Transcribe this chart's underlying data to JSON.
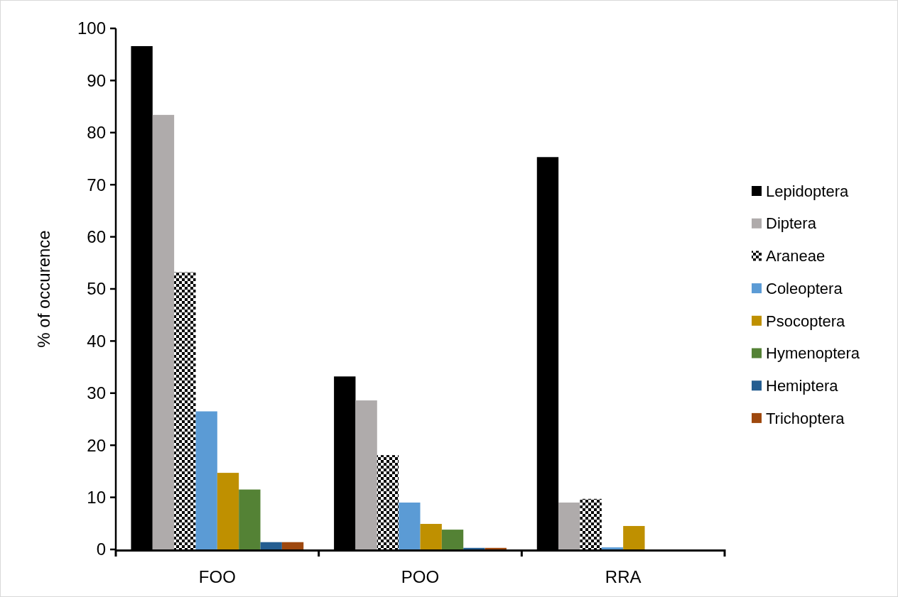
{
  "chart_data": {
    "type": "bar",
    "ylabel": "% of occurence",
    "categories": [
      "FOO",
      "POO",
      "RRA"
    ],
    "ylim": [
      0,
      100
    ],
    "yticks": [
      0,
      10,
      20,
      30,
      40,
      50,
      60,
      70,
      80,
      90,
      100
    ],
    "grid": false,
    "legend": "right",
    "series": [
      {
        "name": "Lepidoptera",
        "color": "#000000",
        "values": [
          96.6,
          33.2,
          75.3
        ]
      },
      {
        "name": "Diptera",
        "color": "#afabab",
        "values": [
          83.4,
          28.6,
          9.0
        ]
      },
      {
        "name": "Araneae",
        "color": "#000000",
        "values": [
          53.2,
          18.1,
          9.7
        ]
      },
      {
        "name": "Coleoptera",
        "color": "#5b9bd5",
        "values": [
          26.5,
          9.0,
          0.4
        ]
      },
      {
        "name": "Psocoptera",
        "color": "#bf9000",
        "values": [
          14.7,
          4.9,
          4.5
        ]
      },
      {
        "name": "Hymenoptera",
        "color": "#548235",
        "values": [
          11.5,
          3.8,
          0
        ]
      },
      {
        "name": "Hemiptera",
        "color": "#255e91",
        "values": [
          1.4,
          0.3,
          0
        ]
      },
      {
        "name": "Trichoptera",
        "color": "#9e480e",
        "values": [
          1.4,
          0.3,
          0
        ]
      }
    ]
  }
}
